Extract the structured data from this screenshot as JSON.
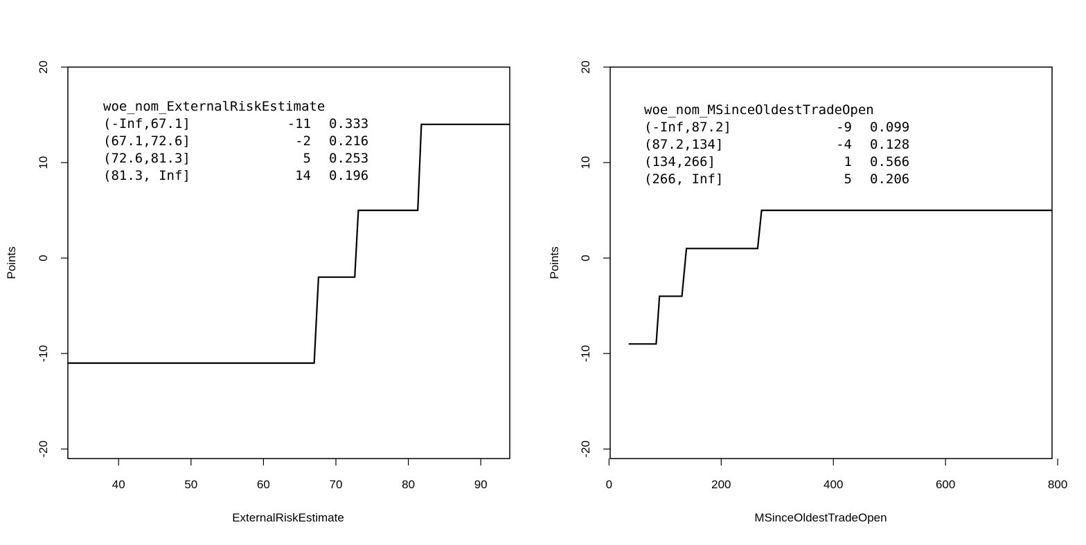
{
  "chart_data": [
    {
      "type": "line",
      "step": true,
      "xlabel": "ExternalRiskEstimate",
      "ylabel": "Points",
      "xlim": [
        33,
        94
      ],
      "ylim": [
        -21,
        20
      ],
      "xticks": [
        "40",
        "50",
        "60",
        "70",
        "80",
        "90"
      ],
      "xtick_values": [
        40,
        50,
        60,
        70,
        80,
        90
      ],
      "yticks": [
        "-20",
        "-10",
        "0",
        "10",
        "20"
      ],
      "ytick_values": [
        -20,
        -10,
        0,
        10,
        20
      ],
      "x": [
        33,
        67,
        67.6,
        72.6,
        73.1,
        81.3,
        81.8,
        94
      ],
      "y": [
        -11,
        -11,
        -2,
        -2,
        5,
        5,
        14,
        14
      ],
      "legend_title": "woe_nom_ExternalRiskEstimate",
      "legend_rows": [
        {
          "bin": "(-Inf,67.1]",
          "points": "-11",
          "share": "0.333"
        },
        {
          "bin": "(67.1,72.6]",
          "points": "-2",
          "share": "0.216"
        },
        {
          "bin": "(72.6,81.3]",
          "points": "5",
          "share": "0.253"
        },
        {
          "bin": "(81.3, Inf]",
          "points": "14",
          "share": "0.196"
        }
      ],
      "grid": false,
      "legend_position": "top-left"
    },
    {
      "type": "line",
      "step": true,
      "xlabel": "MSinceOldestTradeOpen",
      "ylabel": "Points",
      "xlim": [
        2,
        790
      ],
      "ylim": [
        -21,
        20
      ],
      "xticks": [
        "0",
        "200",
        "400",
        "600",
        "800"
      ],
      "xtick_values": [
        0,
        200,
        400,
        600,
        800
      ],
      "yticks": [
        "-20",
        "-10",
        "0",
        "10",
        "20"
      ],
      "ytick_values": [
        -20,
        -10,
        0,
        10,
        20
      ],
      "x": [
        35,
        84,
        90,
        130,
        138,
        265,
        272,
        790
      ],
      "y": [
        -9,
        -9,
        -4,
        -4,
        1,
        1,
        5,
        5
      ],
      "legend_title": "woe_nom_MSinceOldestTradeOpen",
      "legend_rows": [
        {
          "bin": "(-Inf,87.2]",
          "points": "-9",
          "share": "0.099"
        },
        {
          "bin": "(87.2,134]",
          "points": "-4",
          "share": "0.128"
        },
        {
          "bin": "(134,266]",
          "points": "1",
          "share": "0.566"
        },
        {
          "bin": "(266, Inf]",
          "points": "5",
          "share": "0.206"
        }
      ],
      "grid": false,
      "legend_position": "top-left"
    }
  ]
}
